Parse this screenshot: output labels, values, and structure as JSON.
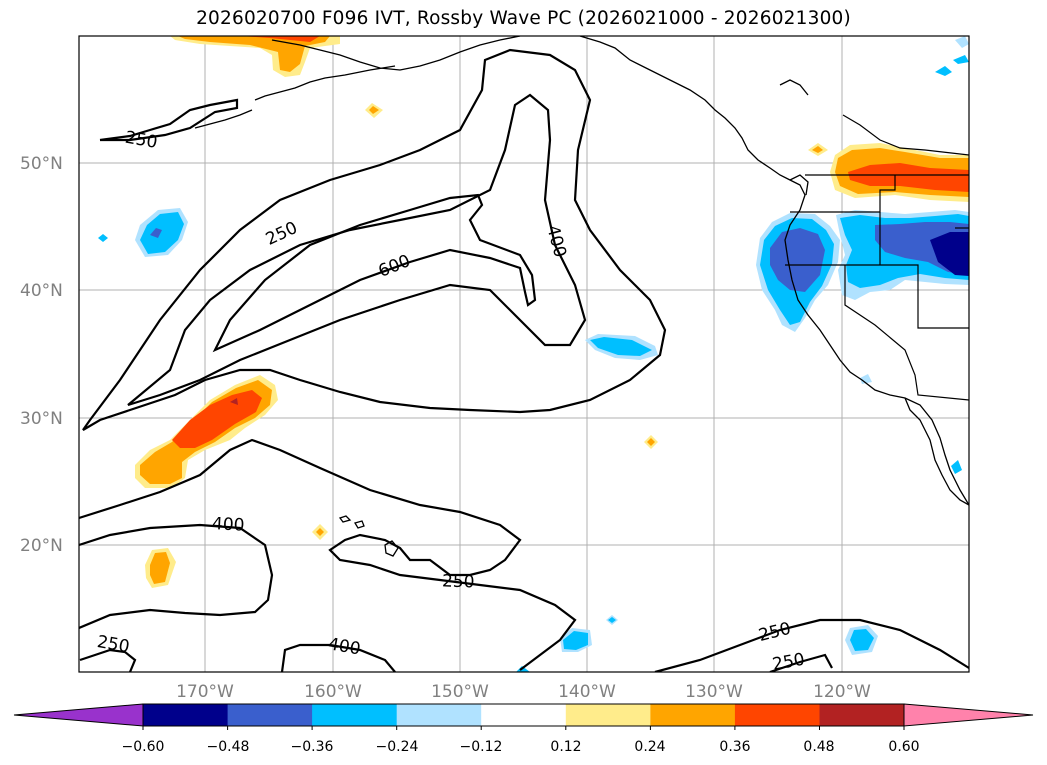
{
  "title": "2026020700 F096 IVT, Rossby Wave PC (2026021000 - 2026021300)",
  "lat_labels": [
    "50°N",
    "40°N",
    "30°N",
    "20°N"
  ],
  "lon_labels": [
    "170°W",
    "160°W",
    "150°W",
    "140°W",
    "130°W",
    "120°W"
  ],
  "contour_labels": [
    "250",
    "250",
    "600",
    "400",
    "400",
    "250",
    "250",
    "400",
    "250",
    "250"
  ],
  "colorbar": {
    "tick_labels": [
      "−0.60",
      "−0.48",
      "−0.36",
      "−0.24",
      "−0.12",
      "0.12",
      "0.24",
      "0.36",
      "0.48",
      "0.60"
    ],
    "colors": [
      "#9932cc",
      "#00008b",
      "#3a5fcd",
      "#00bfff",
      "#b0e2ff",
      "#ffffff",
      "#ffec8b",
      "#ffa500",
      "#ff4500",
      "#b22222",
      "#ff82ab"
    ]
  },
  "ivt_contour_levels": [
    "250",
    "400",
    "600"
  ]
}
